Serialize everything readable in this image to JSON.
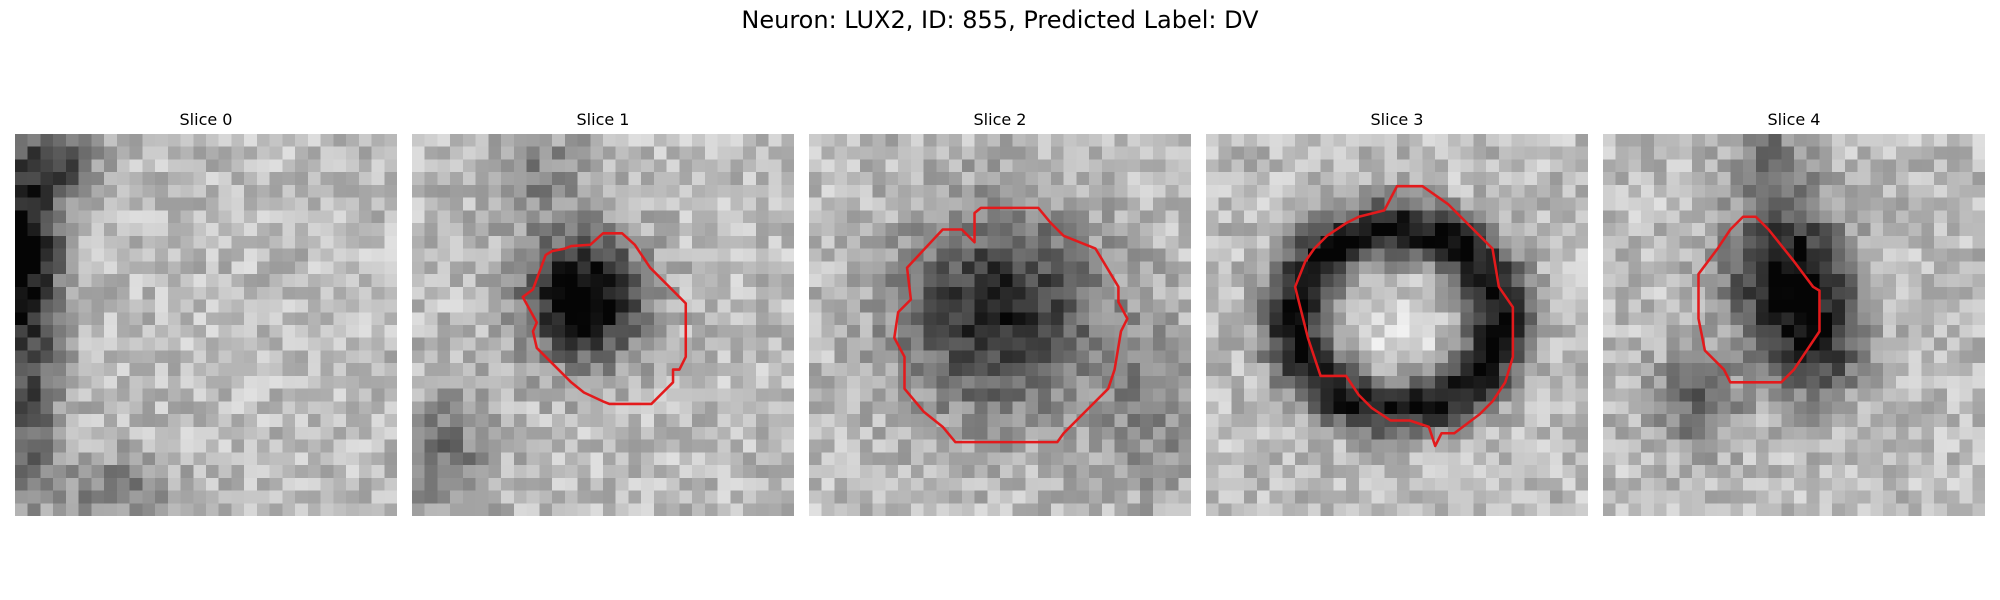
{
  "figure": {
    "title": "Neuron: LUX2, ID: 855, Predicted Label: DV"
  },
  "panels": [
    {
      "title": "Slice 0",
      "has_contour": false,
      "dark_blob": "left-edge"
    },
    {
      "title": "Slice 1",
      "has_contour": true,
      "dark_blob": "center"
    },
    {
      "title": "Slice 2",
      "has_contour": true,
      "dark_blob": "center"
    },
    {
      "title": "Slice 3",
      "has_contour": true,
      "dark_blob": "ring"
    },
    {
      "title": "Slice 4",
      "has_contour": true,
      "dark_blob": "upper-center"
    }
  ],
  "colors": {
    "contour": "#e31a1c",
    "background": "#ffffff"
  },
  "colormap": "grayscale"
}
